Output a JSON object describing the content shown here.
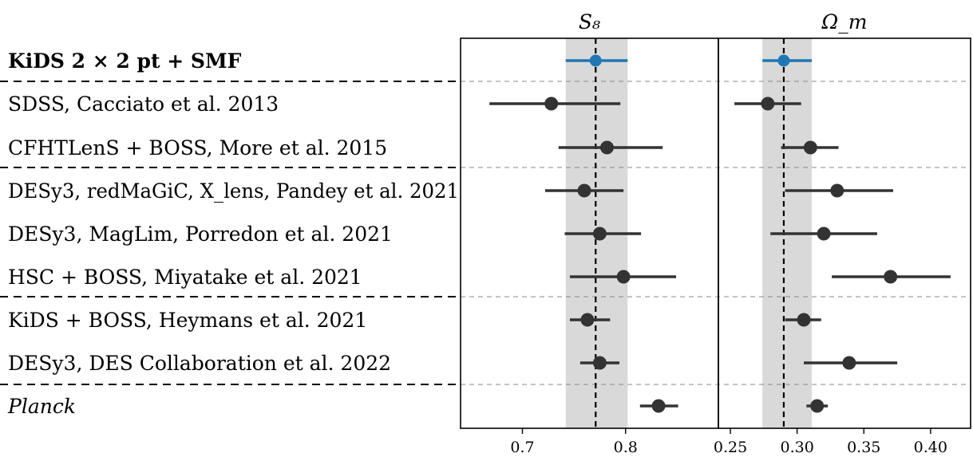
{
  "chart_data": [
    {
      "type": "scatter",
      "title": "S₈",
      "xlim": [
        0.64,
        0.89
      ],
      "x_ticks": [
        0.7,
        0.8
      ],
      "x_tick_labels": [
        "0.7",
        "0.8"
      ],
      "reference": {
        "value": 0.771,
        "band": [
          0.742,
          0.802
        ]
      },
      "points": [
        {
          "label": "KiDS 2 × 2 pt + SMF",
          "value": 0.771,
          "err_low": 0.742,
          "err_high": 0.802,
          "color": "#1f77b4"
        },
        {
          "label": "SDSS, Cacciato et al. 2013",
          "value": 0.728,
          "err_low": 0.668,
          "err_high": 0.795,
          "color": "#333333"
        },
        {
          "label": "CFHTLenS + BOSS, More et al. 2015",
          "value": 0.782,
          "err_low": 0.735,
          "err_high": 0.836,
          "color": "#333333"
        },
        {
          "label": "DESy3, redMaGiC, X_lens, Pandey et al. 2021",
          "value": 0.76,
          "err_low": 0.722,
          "err_high": 0.798,
          "color": "#333333"
        },
        {
          "label": "DESy3, MagLim, Porredon et al. 2021",
          "value": 0.775,
          "err_low": 0.741,
          "err_high": 0.815,
          "color": "#333333"
        },
        {
          "label": "HSC + BOSS, Miyatake et al. 2021",
          "value": 0.798,
          "err_low": 0.746,
          "err_high": 0.849,
          "color": "#333333"
        },
        {
          "label": "KiDS + BOSS, Heymans et al. 2021",
          "value": 0.763,
          "err_low": 0.746,
          "err_high": 0.785,
          "color": "#333333"
        },
        {
          "label": "DESy3, DES Collaboration et al. 2022",
          "value": 0.775,
          "err_low": 0.756,
          "err_high": 0.794,
          "color": "#333333"
        },
        {
          "label": "Planck",
          "value": 0.832,
          "err_low": 0.814,
          "err_high": 0.851,
          "color": "#333333"
        }
      ]
    },
    {
      "type": "scatter",
      "title": "Ω_m",
      "xlim": [
        0.241,
        0.43
      ],
      "x_ticks": [
        0.25,
        0.3,
        0.35,
        0.4
      ],
      "x_tick_labels": [
        "0.25",
        "0.30",
        "0.35",
        "0.40"
      ],
      "reference": {
        "value": 0.29,
        "band": [
          0.274,
          0.311
        ]
      },
      "points": [
        {
          "label": "KiDS 2 × 2 pt + SMF",
          "value": 0.29,
          "err_low": 0.274,
          "err_high": 0.311,
          "color": "#1f77b4"
        },
        {
          "label": "SDSS, Cacciato et al. 2013",
          "value": 0.278,
          "err_low": 0.253,
          "err_high": 0.303,
          "color": "#333333"
        },
        {
          "label": "CFHTLenS + BOSS, More et al. 2015",
          "value": 0.31,
          "err_low": 0.288,
          "err_high": 0.331,
          "color": "#333333"
        },
        {
          "label": "DESy3, redMaGiC, X_lens, Pandey et al. 2021",
          "value": 0.33,
          "err_low": 0.291,
          "err_high": 0.372,
          "color": "#333333"
        },
        {
          "label": "DESy3, MagLim, Porredon et al. 2021",
          "value": 0.32,
          "err_low": 0.28,
          "err_high": 0.36,
          "color": "#333333"
        },
        {
          "label": "HSC + BOSS, Miyatake et al. 2021",
          "value": 0.37,
          "err_low": 0.326,
          "err_high": 0.415,
          "color": "#333333"
        },
        {
          "label": "KiDS + BOSS, Heymans et al. 2021",
          "value": 0.305,
          "err_low": 0.291,
          "err_high": 0.318,
          "color": "#333333"
        },
        {
          "label": "DESy3, DES Collaboration et al. 2022",
          "value": 0.339,
          "err_low": 0.305,
          "err_high": 0.375,
          "color": "#333333"
        },
        {
          "label": "Planck",
          "value": 0.315,
          "err_low": 0.307,
          "err_high": 0.323,
          "color": "#333333"
        }
      ]
    }
  ],
  "row_labels": [
    {
      "text": "KiDS 2 × 2 pt + SMF",
      "style": "bold"
    },
    {
      "text": "SDSS, Cacciato et al. 2013",
      "style": "normal"
    },
    {
      "text": "CFHTLenS + BOSS, More et al. 2015",
      "style": "normal"
    },
    {
      "text": "DESy3, redMaGiC, X_lens, Pandey et al. 2021",
      "style": "normal"
    },
    {
      "text": "DESy3, MagLim, Porredon et al. 2021",
      "style": "normal"
    },
    {
      "text": "HSC + BOSS, Miyatake et al. 2021",
      "style": "normal"
    },
    {
      "text": "KiDS + BOSS, Heymans et al. 2021",
      "style": "normal"
    },
    {
      "text": "DESy3, DES Collaboration et al. 2022",
      "style": "normal"
    },
    {
      "text": "Planck",
      "style": "italic"
    }
  ],
  "group_separators_after_rows": [
    0,
    2,
    5,
    7
  ],
  "band_color": "#d9d9d9"
}
